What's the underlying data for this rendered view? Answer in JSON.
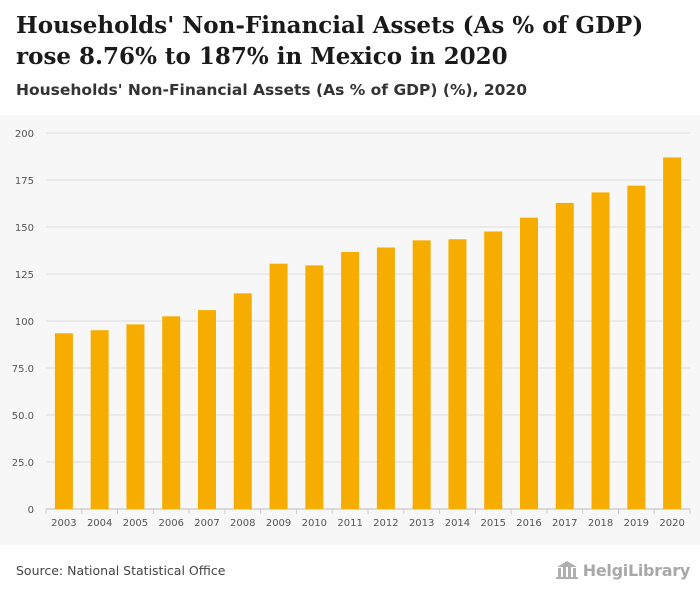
{
  "header": {
    "title": "Households' Non-Financial Assets (As % of GDP) rose 8.76% to 187% in Mexico in 2020",
    "subtitle": "Households' Non-Financial Assets (As % of GDP) (%), 2020"
  },
  "footer": {
    "source": "Source: National Statistical Office",
    "logo_text": "HelgiLibrary"
  },
  "colors": {
    "bar": "#f7ad00",
    "grid": "#dcdcdc",
    "axis_text": "#555555"
  },
  "chart_data": {
    "type": "bar",
    "title": "Households' Non-Financial Assets (As % of GDP) (%), 2020",
    "xlabel": "",
    "ylabel": "",
    "ylim": [
      0,
      200
    ],
    "yticks": [
      0,
      25,
      50,
      75,
      100,
      125,
      150,
      175,
      200
    ],
    "ytick_labels": [
      "0",
      "25.0",
      "50.0",
      "75.0",
      "100",
      "125",
      "150",
      "175",
      "200"
    ],
    "grid": true,
    "categories": [
      "2003",
      "2004",
      "2005",
      "2006",
      "2007",
      "2008",
      "2009",
      "2010",
      "2011",
      "2012",
      "2013",
      "2014",
      "2015",
      "2016",
      "2017",
      "2018",
      "2019",
      "2020"
    ],
    "values": [
      93.5,
      95.1,
      98.2,
      102.5,
      105.8,
      114.7,
      130.5,
      129.6,
      136.7,
      139.1,
      142.9,
      143.5,
      147.6,
      155.0,
      162.8,
      168.4,
      172.0,
      187.0
    ]
  }
}
